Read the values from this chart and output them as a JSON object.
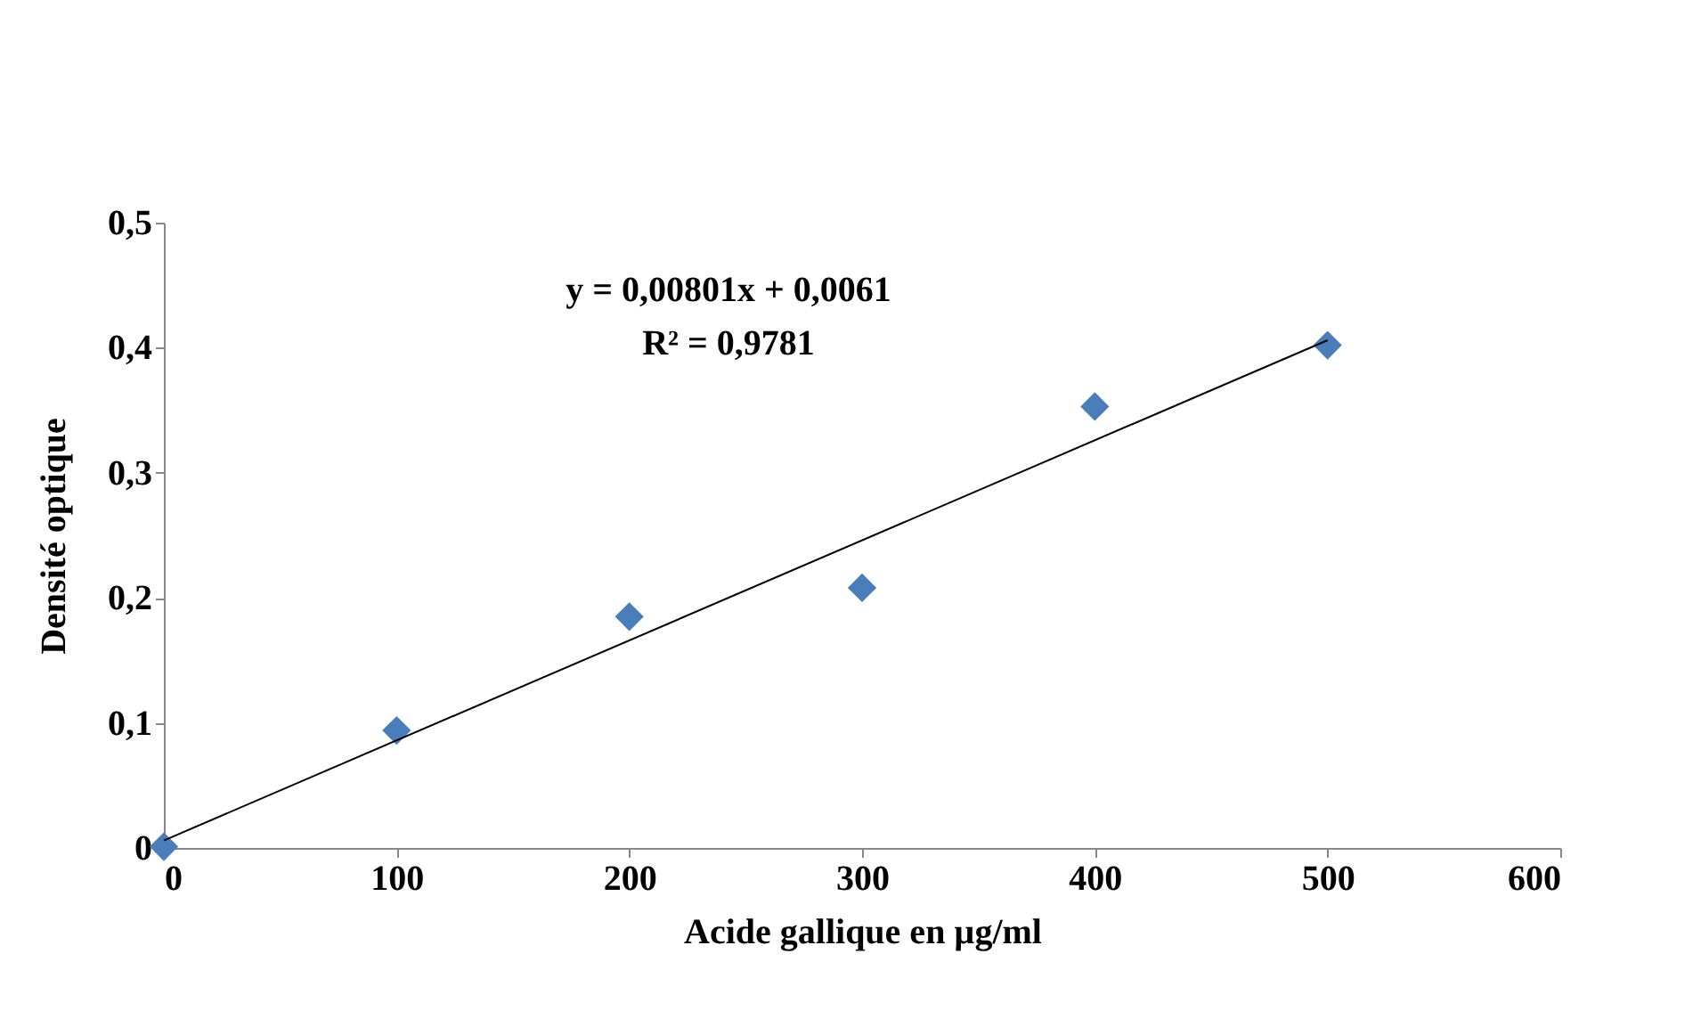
{
  "chart_data": {
    "type": "scatter",
    "xlabel": "Acide gallique en µg/ml",
    "ylabel": "Densité optique",
    "x": [
      0,
      100,
      200,
      300,
      400,
      500
    ],
    "series": [
      {
        "color": "#4a7ebb",
        "marker": "diamond",
        "values": [
          0.001,
          0.094,
          0.185,
          0.208,
          0.353,
          0.402
        ]
      },
      {
        "type": "line",
        "color": "#000000",
        "marker": "none",
        "line_style": "solid",
        "x": [
          0,
          500
        ],
        "values": [
          0.006,
          0.406
        ]
      }
    ],
    "xlim": [
      0,
      600
    ],
    "xticks": [
      0,
      100,
      200,
      300,
      400,
      500,
      600
    ],
    "ylim": [
      0,
      0.5
    ],
    "yticks": [
      0,
      {
        "value": 0.1,
        "label": "0,1"
      },
      {
        "value": 0.2,
        "label": "0,2"
      },
      {
        "value": 0.3,
        "label": "0,3"
      },
      {
        "value": 0.4,
        "label": "0,4"
      },
      {
        "value": 0.5,
        "label": "0,5"
      }
    ],
    "annotations": [
      "y = 0,00801x + 0,0061",
      "R² = 0,9781"
    ],
    "grid": false
  }
}
